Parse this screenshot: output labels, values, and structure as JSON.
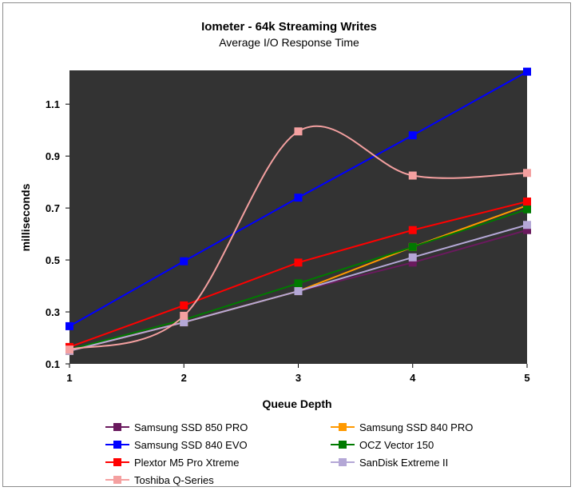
{
  "chart_data": {
    "type": "line",
    "title": "Iometer - 64k Streaming Writes",
    "subtitle": "Average I/O Response Time",
    "xlabel": "Queue Depth",
    "ylabel": "milliseconds",
    "x": [
      1,
      2,
      3,
      4,
      5
    ],
    "xlim": [
      1,
      5
    ],
    "ylim": [
      0.1,
      1.23
    ],
    "yticks": [
      0.1,
      0.3,
      0.5,
      0.7,
      0.9,
      1.1
    ],
    "ytick_labels": [
      "0.1",
      "0.3",
      "0.5",
      "0.7",
      "0.9",
      "1.1"
    ],
    "xtick_labels": [
      "1",
      "2",
      "3",
      "4",
      "5"
    ],
    "grid": false,
    "legend_position": "bottom",
    "plot_background": "#333333",
    "series": [
      {
        "name": "Samsung SSD 850 PRO",
        "color": "#6a1a5e",
        "smooth": false,
        "values": [
          0.15,
          0.26,
          0.38,
          0.49,
          0.615
        ]
      },
      {
        "name": "Samsung SSD 840 PRO",
        "color": "#ff9900",
        "smooth": false,
        "values": [
          0.15,
          0.26,
          0.38,
          0.55,
          0.71
        ]
      },
      {
        "name": "Samsung SSD 840 EVO",
        "color": "#0000ff",
        "smooth": false,
        "values": [
          0.245,
          0.495,
          0.74,
          0.98,
          1.225
        ]
      },
      {
        "name": "OCZ Vector 150",
        "color": "#007a00",
        "smooth": false,
        "values": [
          0.155,
          0.27,
          0.41,
          0.55,
          0.695
        ]
      },
      {
        "name": "Plextor M5 Pro Xtreme",
        "color": "#ff0000",
        "smooth": false,
        "values": [
          0.165,
          0.325,
          0.49,
          0.615,
          0.725
        ]
      },
      {
        "name": "SanDisk Extreme II",
        "color": "#b4a7d6",
        "smooth": false,
        "values": [
          0.15,
          0.26,
          0.38,
          0.51,
          0.635
        ]
      },
      {
        "name": "Toshiba Q-Series",
        "color": "#f4a0a0",
        "smooth": true,
        "values": [
          0.155,
          0.285,
          0.995,
          0.825,
          0.835
        ]
      }
    ]
  }
}
